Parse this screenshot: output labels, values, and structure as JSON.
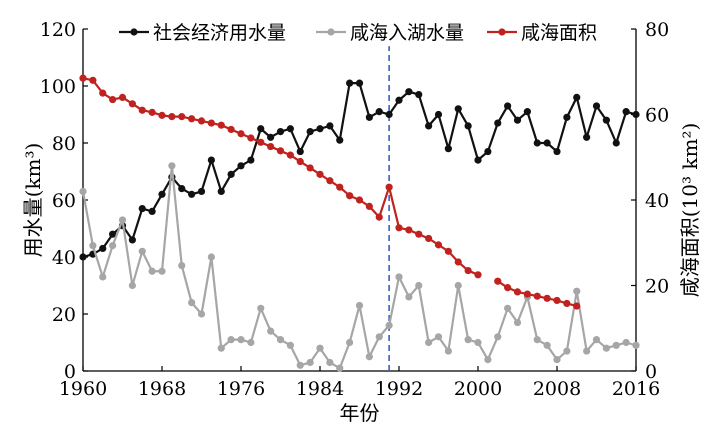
{
  "chart_data": {
    "type": "line",
    "xlabel": "年份",
    "ylabel_left": "用水量(km³)",
    "ylabel_right": "咸海面积(10³ km²)",
    "xlim": [
      1960,
      2016
    ],
    "ylim_left": [
      0,
      120
    ],
    "ylim_right": [
      0,
      80
    ],
    "x_ticks": [
      1960,
      1968,
      1976,
      1984,
      1992,
      2000,
      2008,
      2016
    ],
    "y_ticks_left": [
      0,
      20,
      40,
      60,
      80,
      100,
      120
    ],
    "y_ticks_right": [
      0,
      20,
      40,
      60,
      80
    ],
    "legend_position": "top",
    "grid": false,
    "reference_line": {
      "x": 1991,
      "style": "dashed",
      "color": "#3b5fc0"
    },
    "series": [
      {
        "name": "社会经济用水量",
        "axis": "left",
        "color": "#111111",
        "points": [
          [
            1960,
            40
          ],
          [
            1961,
            41
          ],
          [
            1962,
            43
          ],
          [
            1963,
            48
          ],
          [
            1964,
            51
          ],
          [
            1965,
            46
          ],
          [
            1966,
            57
          ],
          [
            1967,
            56
          ],
          [
            1968,
            62
          ],
          [
            1969,
            68
          ],
          [
            1970,
            64
          ],
          [
            1971,
            62
          ],
          [
            1972,
            63
          ],
          [
            1973,
            74
          ],
          [
            1974,
            63
          ],
          [
            1975,
            69
          ],
          [
            1976,
            72
          ],
          [
            1977,
            74
          ],
          [
            1978,
            85
          ],
          [
            1979,
            82
          ],
          [
            1980,
            84
          ],
          [
            1981,
            85
          ],
          [
            1982,
            77
          ],
          [
            1983,
            84
          ],
          [
            1984,
            85
          ],
          [
            1985,
            86
          ],
          [
            1986,
            81
          ],
          [
            1987,
            101
          ],
          [
            1988,
            101
          ],
          [
            1989,
            89
          ],
          [
            1990,
            91
          ],
          [
            1991,
            90
          ],
          [
            1992,
            95
          ],
          [
            1993,
            98
          ],
          [
            1994,
            97
          ],
          [
            1995,
            86
          ],
          [
            1996,
            90
          ],
          [
            1997,
            78
          ],
          [
            1998,
            92
          ],
          [
            1999,
            86
          ],
          [
            2000,
            74
          ],
          [
            2001,
            77
          ],
          [
            2002,
            87
          ],
          [
            2003,
            93
          ],
          [
            2004,
            88
          ],
          [
            2005,
            91
          ],
          [
            2006,
            80
          ],
          [
            2007,
            80
          ],
          [
            2008,
            77
          ],
          [
            2009,
            89
          ],
          [
            2010,
            96
          ],
          [
            2011,
            82
          ],
          [
            2012,
            93
          ],
          [
            2013,
            88
          ],
          [
            2014,
            80
          ],
          [
            2015,
            91
          ],
          [
            2016,
            90
          ]
        ]
      },
      {
        "name": "咸海入湖水量",
        "axis": "left",
        "color": "#a6a6a6",
        "points": [
          [
            1960,
            63
          ],
          [
            1961,
            44
          ],
          [
            1962,
            33
          ],
          [
            1963,
            44
          ],
          [
            1964,
            53
          ],
          [
            1965,
            30
          ],
          [
            1966,
            42
          ],
          [
            1967,
            35
          ],
          [
            1968,
            35
          ],
          [
            1969,
            72
          ],
          [
            1970,
            37
          ],
          [
            1971,
            24
          ],
          [
            1972,
            20
          ],
          [
            1973,
            40
          ],
          [
            1974,
            8
          ],
          [
            1975,
            11
          ],
          [
            1976,
            11
          ],
          [
            1977,
            10
          ],
          [
            1978,
            22
          ],
          [
            1979,
            14
          ],
          [
            1980,
            11
          ],
          [
            1981,
            9
          ],
          [
            1982,
            2
          ],
          [
            1983,
            3
          ],
          [
            1984,
            8
          ],
          [
            1985,
            3
          ],
          [
            1986,
            1
          ],
          [
            1987,
            10
          ],
          [
            1988,
            23
          ],
          [
            1989,
            5
          ],
          [
            1990,
            12
          ],
          [
            1991,
            16
          ],
          [
            1992,
            33
          ],
          [
            1993,
            26
          ],
          [
            1994,
            30
          ],
          [
            1995,
            10
          ],
          [
            1996,
            12
          ],
          [
            1997,
            7
          ],
          [
            1998,
            30
          ],
          [
            1999,
            11
          ],
          [
            2000,
            10
          ],
          [
            2001,
            4
          ],
          [
            2002,
            12
          ],
          [
            2003,
            22
          ],
          [
            2004,
            17
          ],
          [
            2005,
            26
          ],
          [
            2006,
            11
          ],
          [
            2007,
            9
          ],
          [
            2008,
            4
          ],
          [
            2009,
            7
          ],
          [
            2010,
            28
          ],
          [
            2011,
            7
          ],
          [
            2012,
            11
          ],
          [
            2013,
            8
          ],
          [
            2014,
            9
          ],
          [
            2015,
            10
          ],
          [
            2016,
            9
          ]
        ]
      },
      {
        "name": "咸海面积",
        "axis": "right",
        "color": "#c0221f",
        "segments": [
          [
            [
              1960,
              68.5
            ],
            [
              1961,
              68
            ],
            [
              1962,
              65
            ],
            [
              1963,
              63.5
            ],
            [
              1964,
              64
            ],
            [
              1965,
              62.5
            ],
            [
              1966,
              61
            ],
            [
              1967,
              60.5
            ],
            [
              1968,
              59.8
            ],
            [
              1969,
              59.5
            ],
            [
              1970,
              59.5
            ],
            [
              1971,
              59
            ],
            [
              1972,
              58.5
            ],
            [
              1973,
              58
            ],
            [
              1974,
              57.5
            ],
            [
              1975,
              56.5
            ],
            [
              1976,
              55.5
            ],
            [
              1977,
              54.5
            ],
            [
              1978,
              53.5
            ],
            [
              1979,
              52.5
            ],
            [
              1980,
              51.5
            ],
            [
              1981,
              50.5
            ],
            [
              1982,
              49
            ],
            [
              1983,
              47.5
            ],
            [
              1984,
              46
            ],
            [
              1985,
              44.5
            ],
            [
              1986,
              43
            ],
            [
              1987,
              41
            ],
            [
              1988,
              40
            ],
            [
              1989,
              38.5
            ],
            [
              1990,
              36
            ],
            [
              1991,
              43
            ],
            [
              1992,
              33.5
            ],
            [
              1993,
              33
            ],
            [
              1994,
              32
            ],
            [
              1995,
              31
            ],
            [
              1996,
              29.5
            ],
            [
              1997,
              28
            ],
            [
              1998,
              25.5
            ],
            [
              1999,
              23.5
            ],
            [
              2000,
              22.5
            ]
          ],
          [
            [
              2002,
              21
            ],
            [
              2003,
              19.5
            ],
            [
              2004,
              18.5
            ],
            [
              2005,
              18
            ],
            [
              2006,
              17.5
            ],
            [
              2007,
              17
            ],
            [
              2008,
              16.5
            ],
            [
              2009,
              15.8
            ],
            [
              2010,
              15.2
            ]
          ]
        ]
      }
    ]
  }
}
